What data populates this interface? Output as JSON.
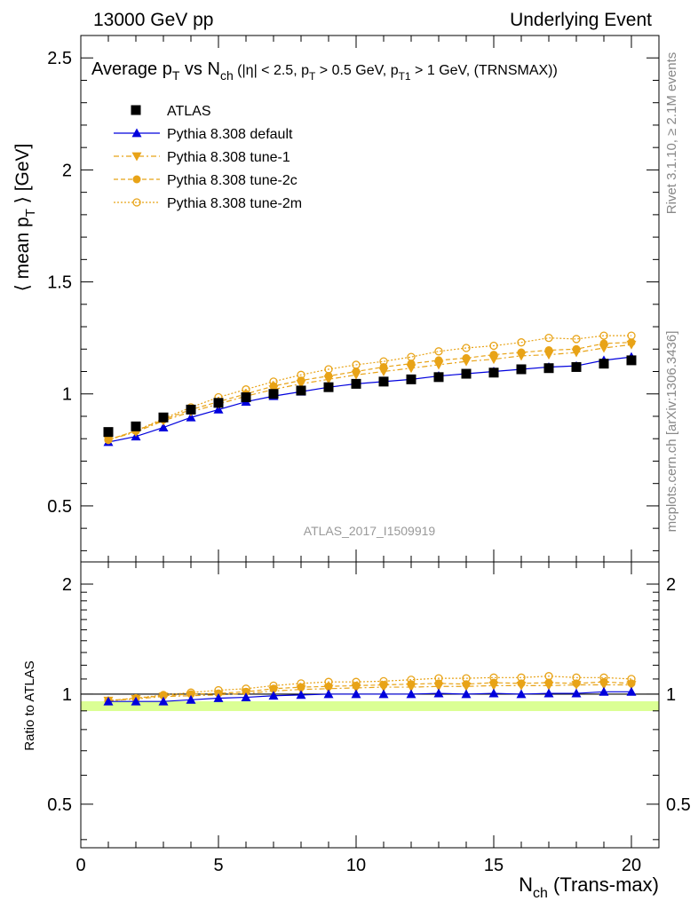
{
  "header": {
    "left": "13000 GeV pp",
    "right": "Underlying Event"
  },
  "title": {
    "main_a": "Average p",
    "main_sub_a": "T",
    "main_b": " vs N",
    "main_sub_b": "ch",
    "cut_a": " (|η| < 2.5, p",
    "cut_sub_a": "T",
    "cut_b": " > 0.5 GeV, p",
    "cut_sub_b": "T1",
    "cut_c": " > 1 GeV, (TRNSMAX))"
  },
  "side_labels": {
    "rivet": "Rivet 3.1.10, ≥ 2.1M events",
    "mcplots": "mcplots.cern.ch [arXiv:1306.3436]"
  },
  "analysis_id": "ATLAS_2017_I1509919",
  "colors": {
    "data": "#000000",
    "default": "#0000dd",
    "tunes": "#e8a317",
    "ratio_band": "#ccff66"
  },
  "chart_data": [
    {
      "type": "line",
      "panel": "main",
      "ylabel_a": "⟨ mean p",
      "ylabel_sub": "T",
      "ylabel_b": " ⟩ [GeV]",
      "xlim": [
        0,
        21
      ],
      "ylim": [
        0.25,
        2.6
      ],
      "yticks": [
        0.5,
        1,
        1.5,
        2,
        2.5
      ],
      "ytick_labels": [
        "0.5",
        "1",
        "1.5",
        "2",
        "2.5"
      ],
      "legend_position": "top-left",
      "x": [
        1,
        2,
        3,
        4,
        5,
        6,
        7,
        8,
        9,
        10,
        11,
        12,
        13,
        14,
        15,
        16,
        17,
        18,
        19,
        20
      ],
      "series": [
        {
          "name": "ATLAS",
          "style": "data",
          "marker": "square",
          "values": [
            0.83,
            0.855,
            0.895,
            0.93,
            0.96,
            0.985,
            1.0,
            1.015,
            1.03,
            1.045,
            1.055,
            1.065,
            1.075,
            1.09,
            1.095,
            1.11,
            1.115,
            1.12,
            1.135,
            1.15
          ]
        },
        {
          "name": "Pythia 8.308 default",
          "style": "default",
          "marker": "triangle-up",
          "values": [
            0.785,
            0.81,
            0.85,
            0.895,
            0.93,
            0.965,
            0.99,
            1.01,
            1.03,
            1.045,
            1.055,
            1.065,
            1.08,
            1.09,
            1.1,
            1.11,
            1.12,
            1.125,
            1.15,
            1.165
          ]
        },
        {
          "name": "Pythia 8.308 tune-1",
          "style": "tune1",
          "marker": "triangle-down",
          "values": [
            0.795,
            0.83,
            0.88,
            0.92,
            0.955,
            0.99,
            1.02,
            1.045,
            1.065,
            1.085,
            1.1,
            1.115,
            1.13,
            1.145,
            1.155,
            1.17,
            1.175,
            1.185,
            1.205,
            1.22
          ]
        },
        {
          "name": "Pythia 8.308 tune-2c",
          "style": "tune2c",
          "marker": "circle",
          "values": [
            0.795,
            0.835,
            0.885,
            0.93,
            0.965,
            1.0,
            1.035,
            1.06,
            1.08,
            1.1,
            1.12,
            1.135,
            1.15,
            1.16,
            1.175,
            1.185,
            1.195,
            1.2,
            1.225,
            1.23
          ]
        },
        {
          "name": "Pythia 8.308 tune-2m",
          "style": "tune2m",
          "marker": "open-circle",
          "values": [
            0.795,
            0.835,
            0.89,
            0.94,
            0.985,
            1.02,
            1.055,
            1.085,
            1.11,
            1.13,
            1.145,
            1.165,
            1.19,
            1.205,
            1.215,
            1.23,
            1.25,
            1.245,
            1.26,
            1.26
          ]
        }
      ]
    },
    {
      "type": "line",
      "panel": "ratio",
      "ylabel": "Ratio to ATLAS",
      "xlabel_a": "N",
      "xlabel_sub": "ch",
      "xlabel_b": " (Trans-max)",
      "xlim": [
        0,
        21
      ],
      "ylim": [
        0.38,
        2.3
      ],
      "xticks": [
        0,
        5,
        10,
        15,
        20
      ],
      "xtick_labels": [
        "0",
        "5",
        "10",
        "15",
        "20"
      ],
      "yticks": [
        0.5,
        1,
        2
      ],
      "ytick_labels": [
        "0.5",
        "1",
        "2"
      ],
      "x": [
        1,
        2,
        3,
        4,
        5,
        6,
        7,
        8,
        9,
        10,
        11,
        12,
        13,
        14,
        15,
        16,
        17,
        18,
        19,
        20
      ],
      "series": [
        {
          "name": "Pythia 8.308 default",
          "style": "default",
          "values": [
            0.955,
            0.955,
            0.955,
            0.965,
            0.975,
            0.98,
            0.99,
            0.995,
            1.0,
            1.0,
            1.0,
            1.0,
            1.005,
            1.0,
            1.005,
            1.0,
            1.005,
            1.005,
            1.015,
            1.015
          ]
        },
        {
          "name": "Pythia 8.308 tune-1",
          "style": "tune1",
          "values": [
            0.96,
            0.97,
            0.985,
            0.99,
            0.995,
            1.005,
            1.02,
            1.03,
            1.035,
            1.04,
            1.045,
            1.045,
            1.05,
            1.05,
            1.055,
            1.055,
            1.055,
            1.06,
            1.06,
            1.06
          ]
        },
        {
          "name": "Pythia 8.308 tune-2c",
          "style": "tune2c",
          "values": [
            0.96,
            0.975,
            0.99,
            1.0,
            1.005,
            1.015,
            1.035,
            1.045,
            1.05,
            1.055,
            1.06,
            1.065,
            1.07,
            1.065,
            1.075,
            1.07,
            1.075,
            1.07,
            1.08,
            1.07
          ]
        },
        {
          "name": "Pythia 8.308 tune-2m",
          "style": "tune2m",
          "values": [
            0.96,
            0.975,
            0.995,
            1.01,
            1.025,
            1.035,
            1.055,
            1.07,
            1.08,
            1.08,
            1.085,
            1.095,
            1.105,
            1.105,
            1.11,
            1.11,
            1.12,
            1.11,
            1.11,
            1.1
          ]
        }
      ]
    }
  ]
}
